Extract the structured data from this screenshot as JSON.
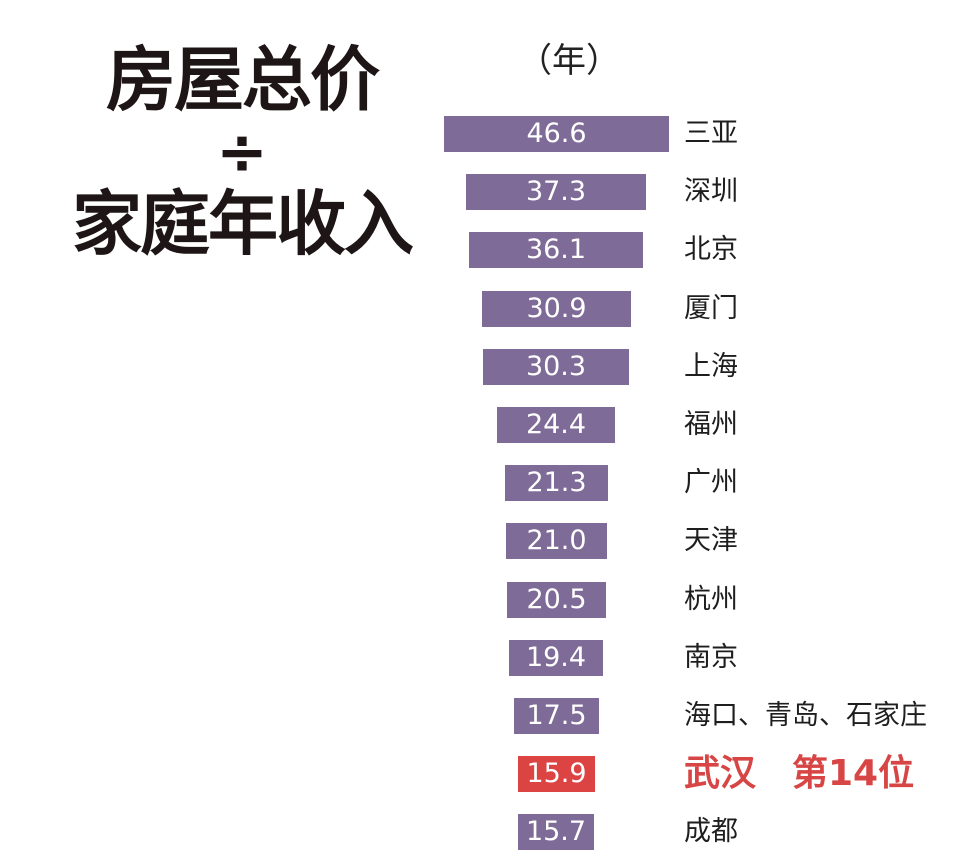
{
  "title": {
    "line1": "房屋总价",
    "operator": "÷",
    "line2": "家庭年收入"
  },
  "unit_label": "（年）",
  "colors": {
    "bar_default": "#7f6b98",
    "bar_highlight": "#dc4343",
    "highlight_text": "#d74545"
  },
  "chart_data": {
    "type": "bar",
    "orientation": "horizontal-centered",
    "title": "房屋总价 ÷ 家庭年收入",
    "unit": "年",
    "categories": [
      "三亚",
      "深圳",
      "北京",
      "厦门",
      "上海",
      "福州",
      "广州",
      "天津",
      "杭州",
      "南京",
      "海口、青岛、石家庄",
      "武汉",
      "成都"
    ],
    "values": [
      46.6,
      37.3,
      36.1,
      30.9,
      30.3,
      24.4,
      21.3,
      21.0,
      20.5,
      19.4,
      17.5,
      15.9,
      15.7
    ],
    "value_labels": [
      "46.6",
      "37.3",
      "36.1",
      "30.9",
      "30.3",
      "24.4",
      "21.3",
      "21.0",
      "20.5",
      "19.4",
      "17.5",
      "15.9",
      "15.7"
    ],
    "highlight": {
      "category": "武汉",
      "annotation": "第14位"
    },
    "grid": false,
    "legend": null
  },
  "rows": [
    {
      "value": "46.6",
      "city": "三亚"
    },
    {
      "value": "37.3",
      "city": "深圳"
    },
    {
      "value": "36.1",
      "city": "北京"
    },
    {
      "value": "30.9",
      "city": "厦门"
    },
    {
      "value": "30.3",
      "city": "上海"
    },
    {
      "value": "24.4",
      "city": "福州"
    },
    {
      "value": "21.3",
      "city": "广州"
    },
    {
      "value": "21.0",
      "city": "天津"
    },
    {
      "value": "20.5",
      "city": "杭州"
    },
    {
      "value": "19.4",
      "city": "南京"
    },
    {
      "value": "17.5",
      "city": "海口、青岛、石家庄"
    },
    {
      "value": "15.9",
      "city": "武汉　第14位",
      "highlight": true
    },
    {
      "value": "15.7",
      "city": "成都"
    }
  ]
}
